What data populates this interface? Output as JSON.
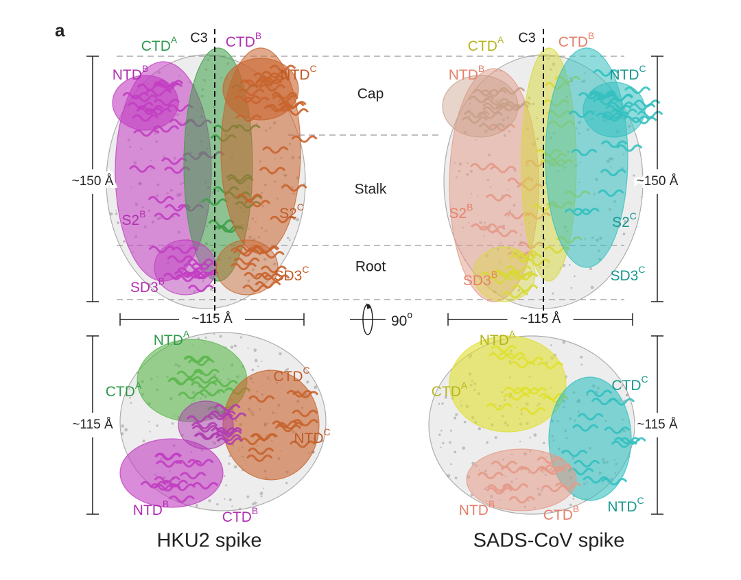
{
  "panel": "a",
  "regions": [
    "Cap",
    "Stalk",
    "Root"
  ],
  "rotation": {
    "text": "90",
    "sup": "o"
  },
  "figures": [
    {
      "title": "HKU2 spike",
      "axis": "C3",
      "side_view": {
        "height": "~150 Å",
        "width": "~115 Å",
        "labels": [
          {
            "text": "CTD",
            "sup": "A",
            "color": "#2e9a4c"
          },
          {
            "text": "CTD",
            "sup": "B",
            "color": "#b02fb0"
          },
          {
            "text": "NTD",
            "sup": "B",
            "color": "#b02fb0"
          },
          {
            "text": "NTD",
            "sup": "C",
            "color": "#c15a26"
          },
          {
            "text": "S2",
            "sup": "B",
            "color": "#b02fb0"
          },
          {
            "text": "S2",
            "sup": "C",
            "color": "#c15a26"
          },
          {
            "text": "SD3",
            "sup": "B",
            "color": "#b02fb0"
          },
          {
            "text": "SD3",
            "sup": "C",
            "color": "#c15a26"
          }
        ]
      },
      "top_view": {
        "size": "~115 Å",
        "labels": [
          {
            "text": "NTD",
            "sup": "A",
            "color": "#2e9a4c"
          },
          {
            "text": "CTD",
            "sup": "A",
            "color": "#2e9a4c"
          },
          {
            "text": "CTD",
            "sup": "C",
            "color": "#c15a26"
          },
          {
            "text": "NTD",
            "sup": "C",
            "color": "#c15a26"
          },
          {
            "text": "NTD",
            "sup": "B",
            "color": "#b02fb0"
          },
          {
            "text": "CTD",
            "sup": "B",
            "color": "#b02fb0"
          }
        ]
      }
    },
    {
      "title": "SADS-CoV spike",
      "axis": "C3",
      "side_view": {
        "height": "~150 Å",
        "width": "~115 Å",
        "labels": [
          {
            "text": "CTD",
            "sup": "A",
            "color": "#b5b520"
          },
          {
            "text": "CTD",
            "sup": "B",
            "color": "#e5806c"
          },
          {
            "text": "NTD",
            "sup": "B",
            "color": "#e5806c"
          },
          {
            "text": "NTD",
            "sup": "C",
            "color": "#17978f"
          },
          {
            "text": "S2",
            "sup": "B",
            "color": "#e5806c"
          },
          {
            "text": "S2",
            "sup": "C",
            "color": "#17978f"
          },
          {
            "text": "SD3",
            "sup": "B",
            "color": "#e5806c"
          },
          {
            "text": "SD3",
            "sup": "C",
            "color": "#17978f"
          }
        ]
      },
      "top_view": {
        "size": "~115 Å",
        "labels": [
          {
            "text": "NTD",
            "sup": "A",
            "color": "#b5b520"
          },
          {
            "text": "CTD",
            "sup": "A",
            "color": "#b5b520"
          },
          {
            "text": "CTD",
            "sup": "C",
            "color": "#17978f"
          },
          {
            "text": "NTD",
            "sup": "B",
            "color": "#e5806c"
          },
          {
            "text": "CTD",
            "sup": "B",
            "color": "#e5806c"
          },
          {
            "text": "NTD",
            "sup": "C",
            "color": "#17978f"
          }
        ]
      }
    }
  ]
}
